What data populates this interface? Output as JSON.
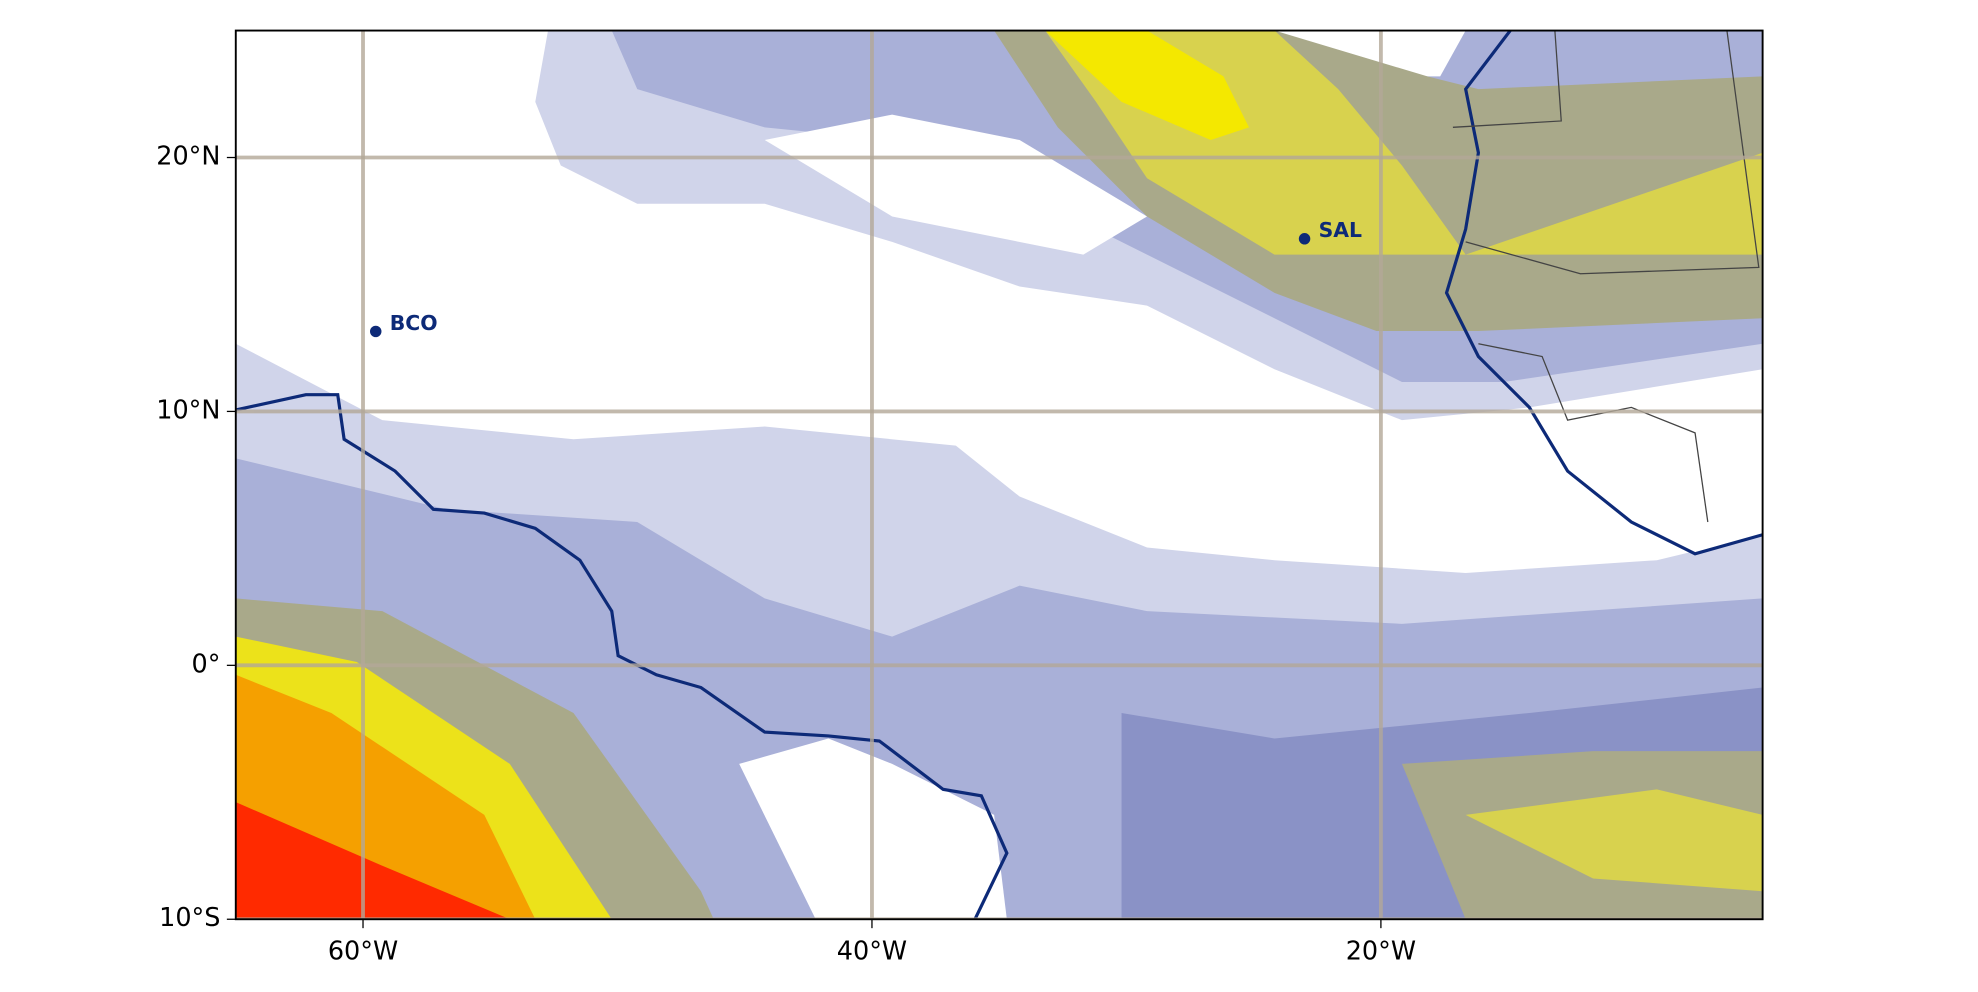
{
  "map": {
    "xlim": [
      -65,
      -5
    ],
    "ylim": [
      -10,
      25
    ],
    "xticks": [
      {
        "value": -60,
        "label": "60°W"
      },
      {
        "value": -40,
        "label": "40°W"
      },
      {
        "value": -20,
        "label": "20°W"
      }
    ],
    "yticks": [
      {
        "value": -10,
        "label": "10°S"
      },
      {
        "value": 0,
        "label": "0°"
      },
      {
        "value": 10,
        "label": "10°N"
      },
      {
        "value": 20,
        "label": "20°N"
      }
    ],
    "grid": true,
    "grid_color": "#b3a898",
    "points": [
      {
        "name": "BCO",
        "lon": -59.5,
        "lat": 13.15,
        "color": "#0d2a78"
      },
      {
        "name": "SAL",
        "lon": -23,
        "lat": 16.8,
        "color": "#0d2a78"
      }
    ]
  }
}
